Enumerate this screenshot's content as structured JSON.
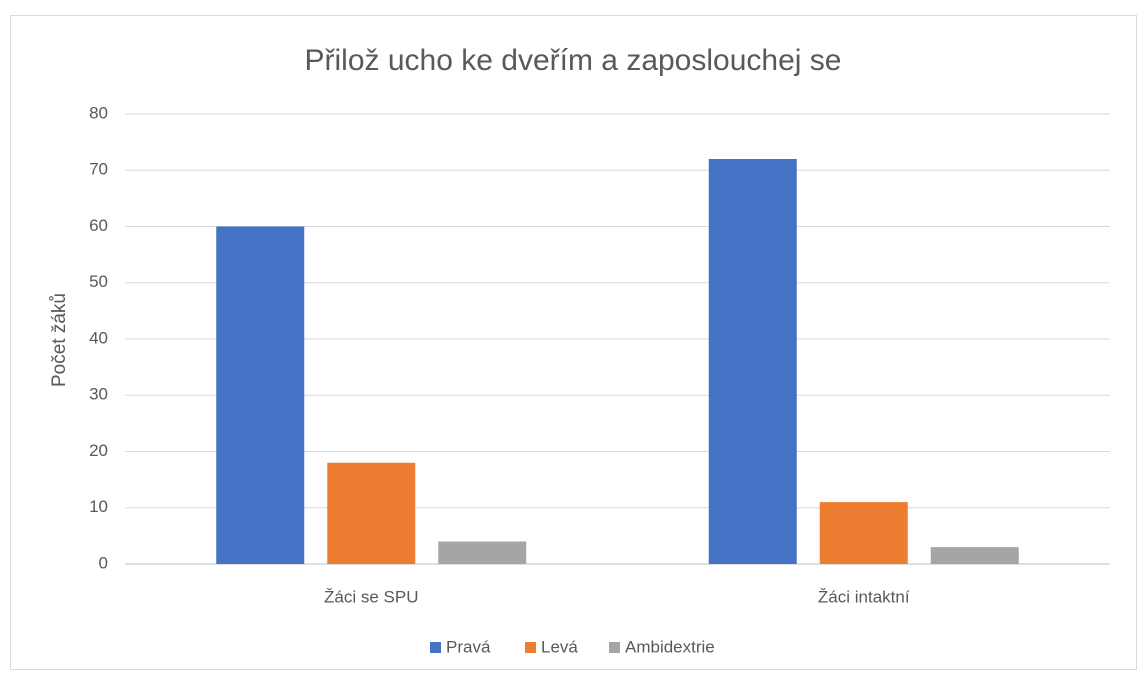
{
  "chart_data": {
    "type": "bar",
    "title": "Přilož ucho ke dveřím a zaposlouchej se",
    "y_label": "Počet žáků",
    "categories": [
      "Žáci se SPU",
      "Žáci intaktní"
    ],
    "series": [
      {
        "name": "Pravá",
        "color": "#4472c4",
        "values": [
          60,
          72
        ]
      },
      {
        "name": "Levá",
        "color": "#ed7d31",
        "values": [
          18,
          11
        ]
      },
      {
        "name": "Ambidextrie",
        "color": "#a5a5a5",
        "values": [
          4,
          3
        ]
      }
    ],
    "ylim": [
      0,
      80
    ],
    "yticks": [
      0,
      10,
      20,
      30,
      40,
      50,
      60,
      70,
      80
    ],
    "grid": true,
    "legend": "bottom"
  }
}
